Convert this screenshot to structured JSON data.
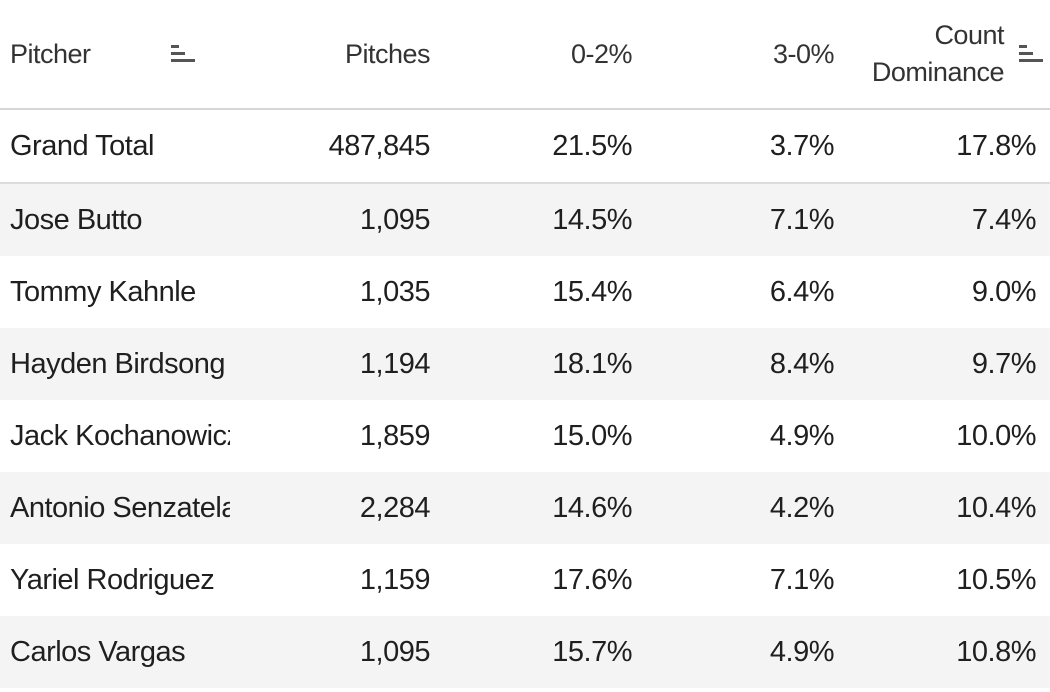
{
  "chart_data": {
    "type": "table",
    "columns": [
      "Pitcher",
      "Pitches",
      "0-2%",
      "3-0%",
      "Count Dominance"
    ],
    "header": {
      "pitcher": "Pitcher",
      "pitches": "Pitches",
      "zero_two": "0-2%",
      "three_zero": "3-0%",
      "count_dominance_line1": "Count",
      "count_dominance_line2": "Dominance"
    },
    "grand_total": {
      "pitcher": "Grand Total",
      "pitches": "487,845",
      "zero_two": "21.5%",
      "three_zero": "3.7%",
      "count_dominance": "17.8%"
    },
    "rows": [
      {
        "pitcher": "Jose Butto",
        "pitches": "1,095",
        "zero_two": "14.5%",
        "three_zero": "7.1%",
        "count_dominance": "7.4%"
      },
      {
        "pitcher": "Tommy Kahnle",
        "pitches": "1,035",
        "zero_two": "15.4%",
        "three_zero": "6.4%",
        "count_dominance": "9.0%"
      },
      {
        "pitcher": "Hayden Birdsong",
        "pitches": "1,194",
        "zero_two": "18.1%",
        "three_zero": "8.4%",
        "count_dominance": "9.7%"
      },
      {
        "pitcher": "Jack Kochanowicz",
        "pitches": "1,859",
        "zero_two": "15.0%",
        "three_zero": "4.9%",
        "count_dominance": "10.0%"
      },
      {
        "pitcher": "Antonio Senzatela",
        "pitches": "2,284",
        "zero_two": "14.6%",
        "three_zero": "4.2%",
        "count_dominance": "10.4%"
      },
      {
        "pitcher": "Yariel Rodriguez",
        "pitches": "1,159",
        "zero_two": "17.6%",
        "three_zero": "7.1%",
        "count_dominance": "10.5%"
      },
      {
        "pitcher": "Carlos Vargas",
        "pitches": "1,095",
        "zero_two": "15.7%",
        "three_zero": "4.9%",
        "count_dominance": "10.8%"
      }
    ],
    "sort": {
      "column": "Count Dominance",
      "direction": "ascending"
    }
  },
  "colors": {
    "text": "#1f1f1f",
    "stripe": "#f4f4f4",
    "divider": "#d6d6d6"
  },
  "icons": {
    "sort_pitcher": "sort-icon",
    "sort_count_dominance": "sort-ascending-icon"
  }
}
